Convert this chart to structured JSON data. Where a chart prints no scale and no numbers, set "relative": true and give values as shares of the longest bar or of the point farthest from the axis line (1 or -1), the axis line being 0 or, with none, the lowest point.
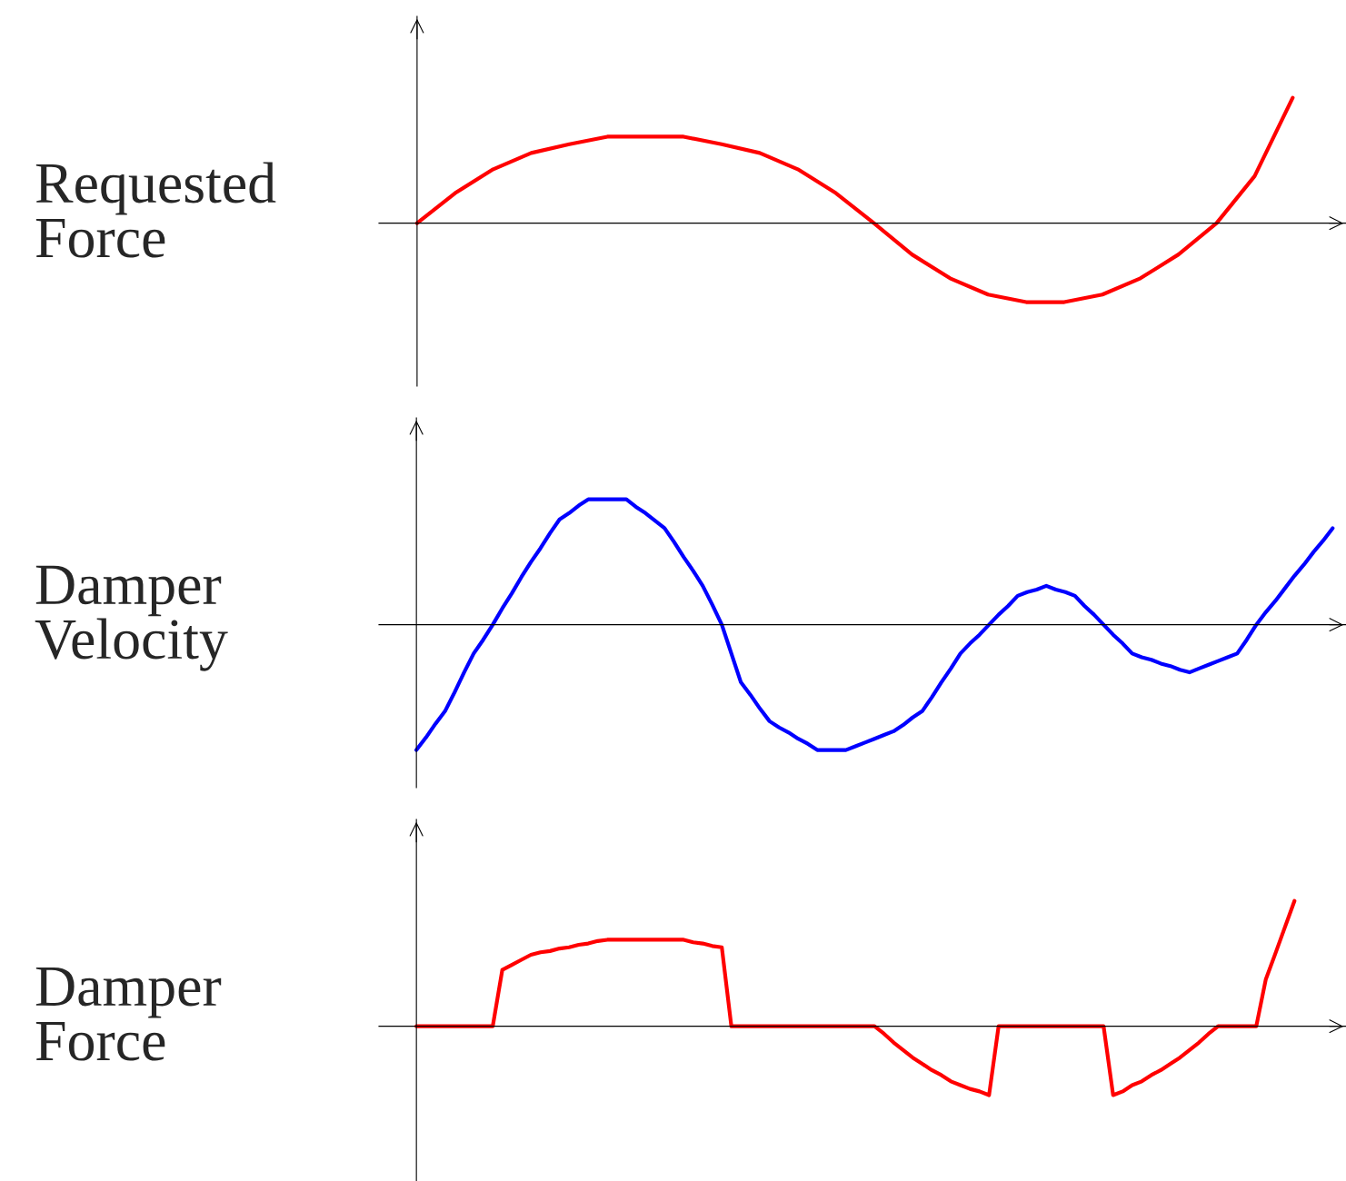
{
  "chart_data": [
    {
      "type": "line",
      "ylabel": "Requested\nForce",
      "relative": true,
      "categories": [
        null,
        null,
        null,
        null,
        null,
        null,
        null,
        null,
        null,
        null,
        null,
        null,
        null,
        null,
        null,
        null,
        null,
        null,
        null,
        null,
        null,
        null,
        null,
        null,
        null
      ],
      "series": [
        {
          "color": "#ff0000",
          "values": [
            0,
            0.24,
            0.43,
            0.56,
            0.63,
            0.69,
            0.69,
            0.69,
            0.63,
            0.56,
            0.43,
            0.24,
            0,
            -0.25,
            -0.44,
            -0.57,
            -0.63,
            -0.63,
            -0.57,
            -0.44,
            -0.25,
            0,
            0.375,
            1.0,
            null
          ]
        }
      ]
    },
    {
      "type": "line",
      "ylabel": "Damper\nVelocity",
      "relative": true,
      "categories": [
        null,
        null,
        null,
        null,
        null,
        null,
        null,
        null,
        null,
        null,
        null,
        null,
        null,
        null,
        null,
        null,
        null,
        null,
        null,
        null,
        null,
        null,
        null,
        null,
        null,
        null,
        null,
        null,
        null,
        null,
        null,
        null,
        null,
        null,
        null,
        null,
        null,
        null,
        null,
        null,
        null,
        null,
        null,
        null,
        null,
        null,
        null,
        null,
        null,
        null,
        null,
        null,
        null,
        null,
        null,
        null,
        null,
        null,
        null,
        null,
        null,
        null,
        null,
        null,
        null,
        null,
        null,
        null,
        null,
        null,
        null,
        null,
        null,
        null,
        null,
        null,
        null,
        null,
        null,
        null,
        null,
        null,
        null,
        null,
        null,
        null,
        null,
        null,
        null,
        null,
        null,
        null,
        null,
        null,
        null,
        null,
        null,
        null
      ],
      "series": [
        {
          "color": "#0000ff",
          "values": [
            -1.0,
            -0.9,
            -0.79,
            -0.69,
            -0.54,
            -0.38,
            -0.23,
            -0.12,
            0,
            0.13,
            0.25,
            0.38,
            0.5,
            0.61,
            0.73,
            0.84,
            0.89,
            0.95,
            1.0,
            1.0,
            1.0,
            1.0,
            1.0,
            0.94,
            0.89,
            0.83,
            0.77,
            0.66,
            0.54,
            0.43,
            0.31,
            0.16,
            0,
            -0.23,
            -0.46,
            -0.56,
            -0.67,
            -0.77,
            -0.82,
            -0.86,
            -0.91,
            -0.95,
            -1.0,
            -1.0,
            -1.0,
            -1.0,
            -0.97,
            -0.94,
            -0.91,
            -0.88,
            -0.85,
            -0.8,
            -0.74,
            -0.69,
            -0.58,
            -0.46,
            -0.35,
            -0.23,
            -0.15,
            -0.08,
            0,
            0.08,
            0.15,
            0.23,
            0.26,
            0.28,
            0.31,
            0.28,
            0.26,
            0.23,
            0.15,
            0.08,
            0,
            -0.08,
            -0.15,
            -0.23,
            -0.26,
            -0.28,
            -0.31,
            -0.33,
            -0.36,
            -0.38,
            -0.35,
            -0.32,
            -0.29,
            -0.26,
            -0.23,
            -0.12,
            0,
            0.1,
            0.19,
            0.29,
            0.39,
            0.48,
            0.58,
            0.67,
            0.77,
            null
          ]
        }
      ]
    },
    {
      "type": "line",
      "ylabel": "Damper\nForce",
      "relative": true,
      "categories": [
        null,
        null,
        null,
        null,
        null,
        null,
        null,
        null,
        null,
        null,
        null,
        null,
        null,
        null,
        null,
        null,
        null,
        null,
        null,
        null,
        null,
        null,
        null,
        null,
        null,
        null,
        null,
        null,
        null,
        null,
        null,
        null,
        null,
        null,
        null,
        null,
        null,
        null,
        null,
        null,
        null,
        null,
        null,
        null,
        null,
        null,
        null,
        null,
        null,
        null,
        null,
        null,
        null,
        null,
        null,
        null,
        null,
        null,
        null,
        null,
        null,
        null,
        null,
        null,
        null,
        null,
        null,
        null,
        null,
        null,
        null,
        null,
        null,
        null,
        null,
        null,
        null,
        null,
        null,
        null,
        null,
        null,
        null,
        null,
        null,
        null,
        null,
        null,
        null,
        null,
        null,
        null,
        null,
        null,
        null,
        null,
        null,
        null
      ],
      "series": [
        {
          "color": "#ff0000",
          "values": [
            0,
            0,
            0,
            0,
            0,
            0,
            0,
            0,
            0,
            0.45,
            0.49,
            0.53,
            0.57,
            0.59,
            0.6,
            0.62,
            0.63,
            0.65,
            0.66,
            0.68,
            0.69,
            0.69,
            0.69,
            0.69,
            0.69,
            0.69,
            0.69,
            0.69,
            0.69,
            0.67,
            0.66,
            0.64,
            0.63,
            0,
            0,
            0,
            0,
            0,
            0,
            0,
            0,
            0,
            0,
            0,
            0,
            0,
            0,
            0,
            0,
            -0.06,
            -0.13,
            -0.19,
            -0.25,
            -0.3,
            -0.35,
            -0.39,
            -0.44,
            -0.47,
            -0.5,
            -0.52,
            -0.55,
            0,
            0,
            0,
            0,
            0,
            0,
            0,
            0,
            0,
            0,
            0,
            0,
            -0.55,
            -0.52,
            -0.47,
            -0.44,
            -0.39,
            -0.35,
            -0.3,
            -0.25,
            -0.19,
            -0.13,
            -0.06,
            0,
            0,
            0,
            0,
            0,
            0.375,
            0.58,
            0.79,
            1.0,
            null,
            null,
            null,
            null,
            null
          ]
        }
      ]
    }
  ]
}
